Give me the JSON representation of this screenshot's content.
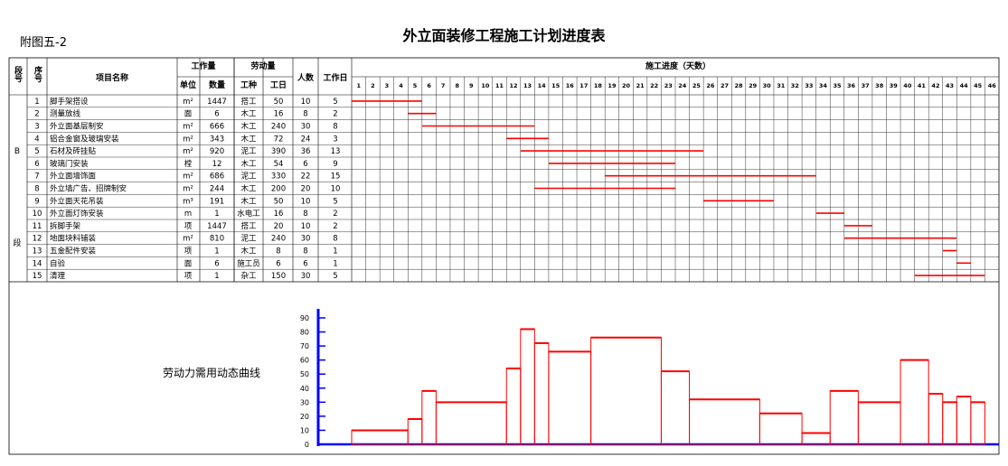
{
  "figure_ref": "附图五-2",
  "title": "外立面装修工程施工计划进度表",
  "headers": {
    "seg": "段号",
    "no": "序号",
    "name": "项目名称",
    "work_group": "工作量",
    "unit": "单位",
    "qty": "数量",
    "labor_group": "劳动量",
    "trade": "工种",
    "days_labor": "工日",
    "people": "人数",
    "duration": "工作日",
    "progress": "施工进度（天数）"
  },
  "segment_chars": [
    "B",
    "段"
  ],
  "curve_label": "劳动力需用动态曲线",
  "colors": {
    "bar": "#ff0000",
    "curve": "#ff0000",
    "axis": "#0000ff"
  },
  "chart_data": [
    {
      "type": "gantt",
      "title": "施工进度（天数）",
      "day_range": [
        1,
        46
      ],
      "day_ticks": [
        1,
        2,
        3,
        4,
        5,
        6,
        7,
        8,
        9,
        10,
        11,
        12,
        13,
        14,
        15,
        16,
        17,
        18,
        19,
        20,
        21,
        22,
        23,
        24,
        25,
        26,
        27,
        28,
        29,
        30,
        31,
        32,
        33,
        34,
        35,
        36,
        37,
        38,
        39,
        40,
        41,
        42,
        43,
        44,
        45,
        46
      ],
      "tasks": [
        {
          "no": "1",
          "name": "脚手架搭设",
          "unit": "m²",
          "qty": "1447",
          "trade": "搭工",
          "labor": "50",
          "people": "10",
          "days": "5",
          "start": 1,
          "end": 5
        },
        {
          "no": "2",
          "name": "测量放线",
          "unit": "面",
          "qty": "6",
          "trade": "木工",
          "labor": "16",
          "people": "8",
          "days": "2",
          "start": 5,
          "end": 6
        },
        {
          "no": "3",
          "name": "外立面基层制安",
          "unit": "m²",
          "qty": "666",
          "trade": "木工",
          "labor": "240",
          "people": "30",
          "days": "8",
          "start": 6,
          "end": 13
        },
        {
          "no": "4",
          "name": "铝合金窗及玻璃安装",
          "unit": "m²",
          "qty": "343",
          "trade": "木工",
          "labor": "72",
          "people": "24",
          "days": "3",
          "start": 12,
          "end": 14
        },
        {
          "no": "5",
          "name": "石材及砖挂贴",
          "unit": "m²",
          "qty": "920",
          "trade": "泥工",
          "labor": "390",
          "people": "36",
          "days": "13",
          "start": 13,
          "end": 25
        },
        {
          "no": "6",
          "name": "玻璃门安装",
          "unit": "樘",
          "qty": "12",
          "trade": "木工",
          "labor": "54",
          "people": "6",
          "days": "9",
          "start": 15,
          "end": 23
        },
        {
          "no": "7",
          "name": "外立面墙饰面",
          "unit": "m²",
          "qty": "686",
          "trade": "泥工",
          "labor": "330",
          "people": "22",
          "days": "15",
          "start": 19,
          "end": 33
        },
        {
          "no": "8",
          "name": "外立墙广告、招牌制安",
          "unit": "m²",
          "qty": "244",
          "trade": "木工",
          "labor": "200",
          "people": "20",
          "days": "10",
          "start": 14,
          "end": 23
        },
        {
          "no": "9",
          "name": "外立面天花吊装",
          "unit": "m³",
          "qty": "191",
          "trade": "木工",
          "labor": "50",
          "people": "10",
          "days": "5",
          "start": 26,
          "end": 30
        },
        {
          "no": "10",
          "name": "外立面灯饰安装",
          "unit": "m",
          "qty": "1",
          "trade": "水电工",
          "labor": "16",
          "people": "8",
          "days": "2",
          "start": 34,
          "end": 35
        },
        {
          "no": "11",
          "name": "拆脚手架",
          "unit": "项",
          "qty": "1447",
          "trade": "搭工",
          "labor": "20",
          "people": "10",
          "days": "2",
          "start": 36,
          "end": 37
        },
        {
          "no": "12",
          "name": "地面块料铺装",
          "unit": "m²",
          "qty": "810",
          "trade": "泥工",
          "labor": "240",
          "people": "30",
          "days": "8",
          "start": 36,
          "end": 43
        },
        {
          "no": "13",
          "name": "五金配件安装",
          "unit": "项",
          "qty": "1",
          "trade": "木工",
          "labor": "8",
          "people": "8",
          "days": "1",
          "start": 43,
          "end": 43
        },
        {
          "no": "14",
          "name": "自验",
          "unit": "面",
          "qty": "6",
          "trade": "施工员",
          "labor": "6",
          "people": "6",
          "days": "1",
          "start": 44,
          "end": 44
        },
        {
          "no": "15",
          "name": "清理",
          "unit": "项",
          "qty": "1",
          "trade": "杂工",
          "labor": "150",
          "people": "30",
          "days": "5",
          "start": 41,
          "end": 45
        }
      ]
    },
    {
      "type": "area",
      "title": "劳动力需用动态曲线",
      "ylim": [
        0,
        90
      ],
      "y_ticks": [
        0,
        10,
        20,
        30,
        40,
        50,
        60,
        70,
        80,
        90
      ],
      "steps": [
        {
          "start": 1,
          "end": 5,
          "value": 10
        },
        {
          "start": 5,
          "end": 6,
          "value": 18
        },
        {
          "start": 6,
          "end": 7,
          "value": 38
        },
        {
          "start": 7,
          "end": 12,
          "value": 30
        },
        {
          "start": 12,
          "end": 13,
          "value": 54
        },
        {
          "start": 13,
          "end": 14,
          "value": 82
        },
        {
          "start": 14,
          "end": 15,
          "value": 72
        },
        {
          "start": 15,
          "end": 18,
          "value": 66
        },
        {
          "start": 18,
          "end": 23,
          "value": 76
        },
        {
          "start": 23,
          "end": 25,
          "value": 52
        },
        {
          "start": 25,
          "end": 30,
          "value": 32
        },
        {
          "start": 30,
          "end": 33,
          "value": 22
        },
        {
          "start": 33,
          "end": 35,
          "value": 8
        },
        {
          "start": 35,
          "end": 37,
          "value": 38
        },
        {
          "start": 37,
          "end": 40,
          "value": 30
        },
        {
          "start": 40,
          "end": 42,
          "value": 60
        },
        {
          "start": 42,
          "end": 43,
          "value": 36
        },
        {
          "start": 43,
          "end": 44,
          "value": 30
        },
        {
          "start": 44,
          "end": 45,
          "value": 34
        },
        {
          "start": 45,
          "end": 46,
          "value": 30
        }
      ]
    }
  ]
}
